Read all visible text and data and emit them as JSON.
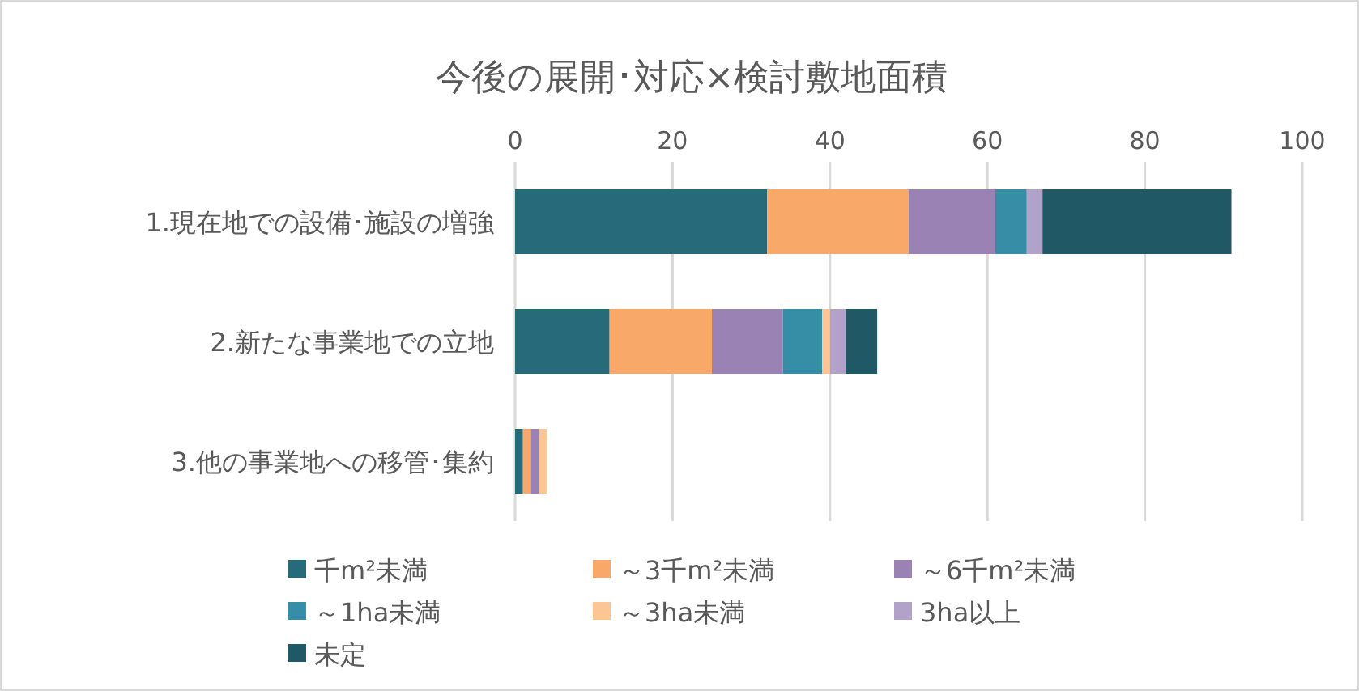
{
  "chart_data": {
    "type": "bar",
    "title": "今後の展開･対応×検討敷地面積",
    "orientation": "horizontal",
    "stacked": true,
    "categories": [
      "1.現在地での設備･施設の増強",
      "2.新たな事業地での立地",
      "3.他の事業地への移管･集約"
    ],
    "series": [
      {
        "name": "千m²未満",
        "color": "#276a7a",
        "values": [
          32,
          12,
          1
        ]
      },
      {
        "name": "～3千m²未満",
        "color": "#f8a96a",
        "values": [
          18,
          13,
          1
        ]
      },
      {
        "name": "～6千m²未満",
        "color": "#9a82b4",
        "values": [
          11,
          9,
          1
        ]
      },
      {
        "name": "～1ha未満",
        "color": "#368ea6",
        "values": [
          4,
          5,
          0
        ]
      },
      {
        "name": "～3ha未満",
        "color": "#fbc596",
        "values": [
          0,
          1,
          1
        ]
      },
      {
        "name": "3ha以上",
        "color": "#b2a2c9",
        "values": [
          2,
          2,
          0
        ]
      },
      {
        "name": "未定",
        "color": "#215866",
        "values": [
          24,
          4,
          0
        ]
      }
    ],
    "xlim": [
      0,
      100
    ],
    "xticks": [
      0,
      20,
      40,
      60,
      80,
      100
    ],
    "grid": "x",
    "legend": "bottom"
  }
}
